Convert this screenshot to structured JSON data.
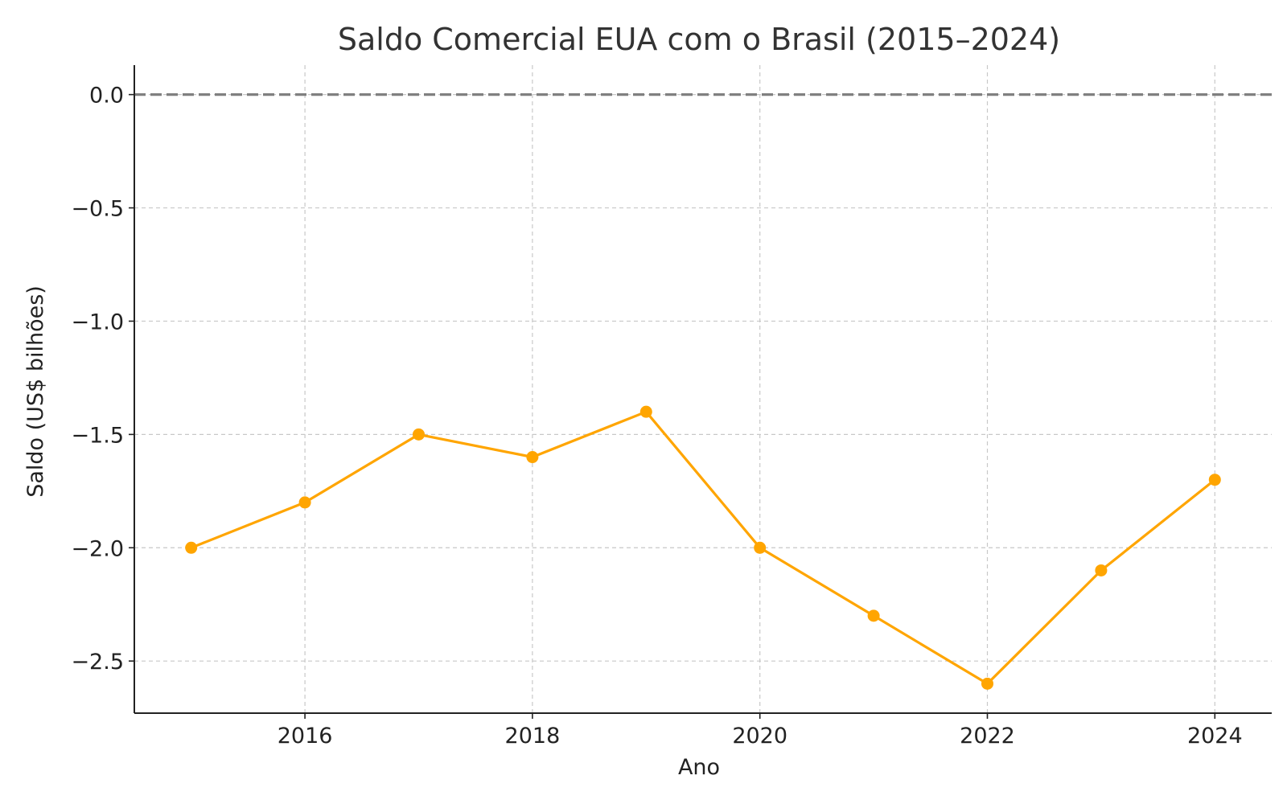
{
  "chart_data": {
    "type": "line",
    "title": "Saldo Comercial EUA com o Brasil (2015–2024)",
    "xlabel": "Ano",
    "ylabel": "Saldo (US$ bilhões)",
    "xlim": [
      2014.5,
      2024.5
    ],
    "ylim": [
      -2.73,
      0.13
    ],
    "x_ticks": [
      2016,
      2018,
      2020,
      2022,
      2024
    ],
    "x_tick_labels": [
      "2016",
      "2018",
      "2020",
      "2022",
      "2024"
    ],
    "y_ticks": [
      0.0,
      -0.5,
      -1.0,
      -1.5,
      -2.0,
      -2.5
    ],
    "y_tick_labels": [
      "0.0",
      "−0.5",
      "−1.0",
      "−1.5",
      "−2.0",
      "−2.5"
    ],
    "grid": true,
    "reference_line": {
      "y": 0,
      "style": "dashed",
      "color": "#808080"
    },
    "series": [
      {
        "color": "#FFA500",
        "x": [
          2015,
          2016,
          2017,
          2018,
          2019,
          2020,
          2021,
          2022,
          2023,
          2024
        ],
        "values": [
          -2.0,
          -1.8,
          -1.5,
          -1.6,
          -1.4,
          -2.0,
          -2.3,
          -2.6,
          -2.1,
          -1.7
        ]
      }
    ]
  }
}
